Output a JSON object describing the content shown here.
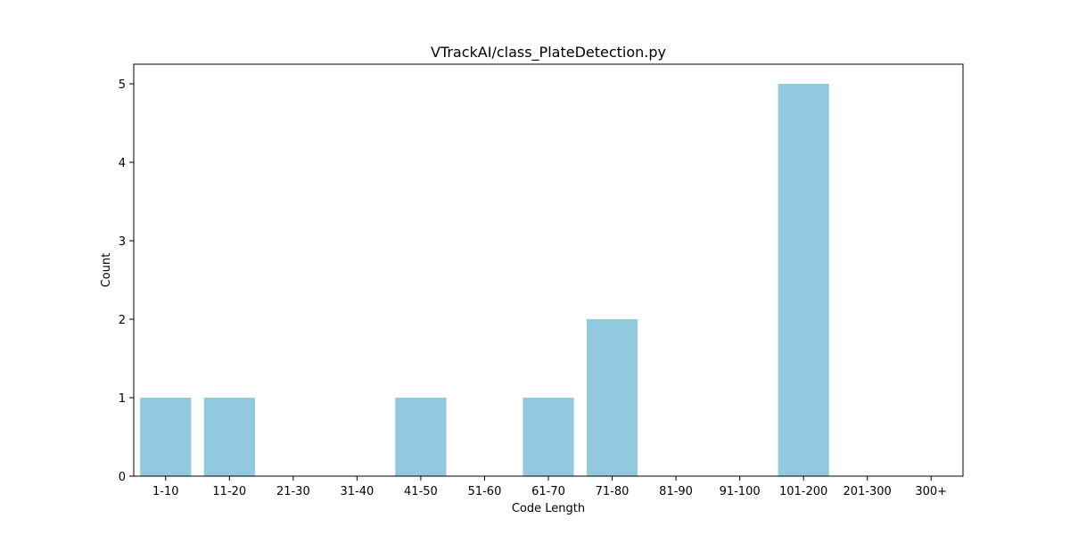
{
  "chart_data": {
    "type": "bar",
    "title": "VTrackAI/class_PlateDetection.py",
    "xlabel": "Code Length",
    "ylabel": "Count",
    "categories": [
      "1-10",
      "11-20",
      "21-30",
      "31-40",
      "41-50",
      "51-60",
      "61-70",
      "71-80",
      "81-90",
      "91-100",
      "101-200",
      "201-300",
      "300+"
    ],
    "values": [
      1,
      1,
      0,
      0,
      1,
      0,
      1,
      2,
      0,
      0,
      5,
      0,
      0
    ],
    "ylim": [
      0,
      5.25
    ],
    "yticks": [
      0,
      1,
      2,
      3,
      4,
      5
    ],
    "bar_color": "#92c9df",
    "grid": false,
    "legend": false
  }
}
